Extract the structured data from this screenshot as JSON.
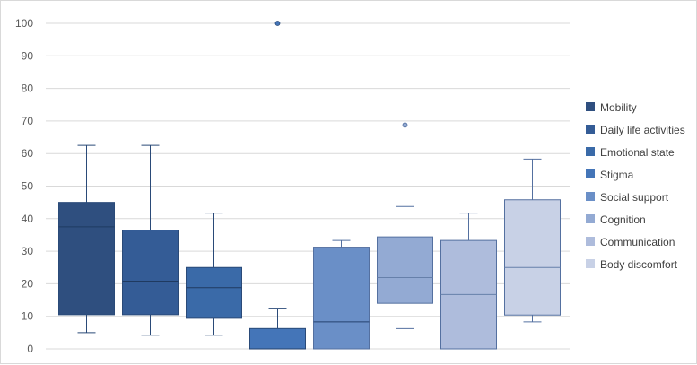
{
  "chart_data": {
    "type": "box",
    "title": "",
    "xlabel": "",
    "ylabel": "",
    "ylim": [
      0,
      100
    ],
    "yticks": [
      0,
      10,
      20,
      30,
      40,
      50,
      60,
      70,
      80,
      90,
      100
    ],
    "grid": true,
    "legend_position": "right",
    "series": [
      {
        "name": "Mobility",
        "color": "#2f4f7f",
        "min": 5,
        "q1": 10.5,
        "median": 37.5,
        "q3": 45,
        "max": 62.5,
        "outliers": []
      },
      {
        "name": "Daily life activities",
        "color": "#345c96",
        "min": 4.2,
        "q1": 10.5,
        "median": 20.8,
        "q3": 36.5,
        "max": 62.5,
        "outliers": []
      },
      {
        "name": "Emotional state",
        "color": "#3a6aa8",
        "min": 4.2,
        "q1": 9.4,
        "median": 18.8,
        "q3": 25,
        "max": 41.7,
        "outliers": []
      },
      {
        "name": "Stigma",
        "color": "#4475b8",
        "min": 0,
        "q1": 0,
        "median": 0,
        "q3": 6.25,
        "max": 12.5,
        "outliers": [
          100
        ]
      },
      {
        "name": "Social support",
        "color": "#6a8fc7",
        "min": 0,
        "q1": 0,
        "median": 8.3,
        "q3": 31.25,
        "max": 33.3,
        "outliers": []
      },
      {
        "name": "Cognition",
        "color": "#93aad3",
        "min": 6.25,
        "q1": 14,
        "median": 21.9,
        "q3": 34.4,
        "max": 43.75,
        "outliers": [
          68.75
        ]
      },
      {
        "name": "Communication",
        "color": "#aebcdc",
        "min": 0,
        "q1": 0,
        "median": 16.7,
        "q3": 33.3,
        "max": 41.7,
        "outliers": []
      },
      {
        "name": "Body discomfort",
        "color": "#c8d1e6",
        "min": 8.3,
        "q1": 10.4,
        "median": 25,
        "q3": 45.8,
        "max": 58.3,
        "outliers": []
      }
    ]
  }
}
